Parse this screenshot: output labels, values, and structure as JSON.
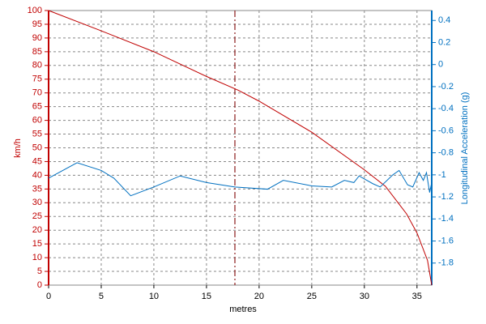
{
  "chart_data": {
    "type": "line",
    "x_label": "metres",
    "y_label": "km/h",
    "y2_label": "Longitudinal Acceleration (g)",
    "xlim": [
      0,
      36.4
    ],
    "xticks": [
      0,
      5,
      10,
      15,
      20,
      25,
      30,
      35
    ],
    "ylim": [
      0,
      100
    ],
    "yticks": [
      0,
      5,
      10,
      15,
      20,
      25,
      30,
      35,
      40,
      45,
      50,
      55,
      60,
      65,
      70,
      75,
      80,
      85,
      90,
      95,
      100
    ],
    "y2lim": [
      -2.0,
      0.49
    ],
    "y2ticks": [
      -1.8,
      -1.6,
      -1.4,
      -1.2,
      -1,
      -0.8,
      -0.6,
      -0.4,
      -0.2,
      0,
      0.2,
      0.4
    ],
    "grid": true,
    "cursor_x": 17.7,
    "cursor_color": "#8b1a1a",
    "series": [
      {
        "color": "#c00000",
        "axis": "y",
        "x": [
          0,
          5,
          10,
          15,
          18,
          20,
          25,
          30,
          32,
          34,
          35,
          36,
          36.4
        ],
        "values": [
          100,
          92.6,
          85,
          76,
          71,
          67,
          55.7,
          42,
          36,
          26,
          19,
          9,
          0
        ]
      },
      {
        "color": "#0070c0",
        "axis": "y2",
        "x": [
          0,
          2.7,
          5,
          6.2,
          7.8,
          10,
          12.5,
          15,
          17.7,
          20.8,
          22.3,
          25,
          26.9,
          28.1,
          29,
          29.5,
          30.8,
          31.5,
          32.7,
          33.3,
          34.1,
          34.6,
          35.2,
          35.6,
          35.9,
          36.2,
          36.4
        ],
        "values": [
          -1.03,
          -0.89,
          -0.96,
          -1.03,
          -1.19,
          -1.11,
          -1.01,
          -1.07,
          -1.11,
          -1.13,
          -1.05,
          -1.1,
          -1.11,
          -1.05,
          -1.07,
          -1.01,
          -1.08,
          -1.11,
          -1.0,
          -0.96,
          -1.09,
          -1.11,
          -0.98,
          -1.05,
          -0.98,
          -1.16,
          -1.07
        ]
      }
    ]
  }
}
